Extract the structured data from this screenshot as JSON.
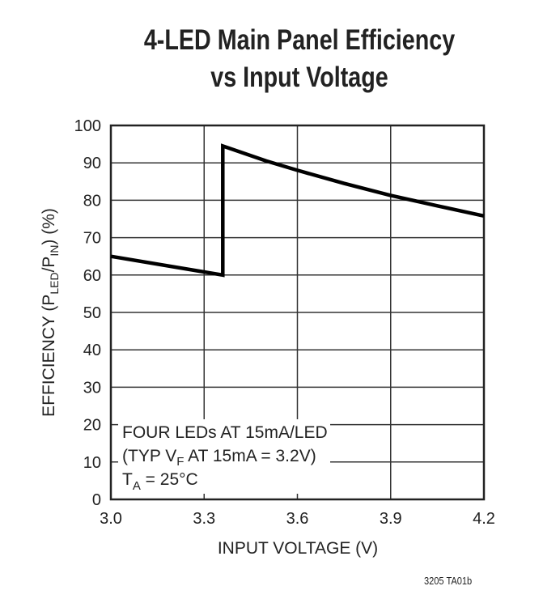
{
  "chart_data": {
    "type": "line",
    "title": "4-LED Main Panel Efficiency",
    "subtitle": "vs Input Voltage",
    "xlabel": "INPUT VOLTAGE (V)",
    "ylabel": "EFFICIENCY (PLED/PIN) (%)",
    "xlim": [
      3.0,
      4.2
    ],
    "ylim": [
      0,
      100
    ],
    "x_ticks": [
      "3.0",
      "3.3",
      "3.6",
      "3.9",
      "4.2"
    ],
    "y_ticks": [
      "0",
      "10",
      "20",
      "30",
      "40",
      "50",
      "60",
      "70",
      "80",
      "90",
      "100"
    ],
    "grid": true,
    "series": [
      {
        "name": "Efficiency",
        "x": [
          3.0,
          3.36,
          3.36,
          3.5,
          3.6,
          3.75,
          3.9,
          4.05,
          4.2
        ],
        "values": [
          65,
          60,
          94.5,
          90.5,
          88,
          84.5,
          81.3,
          78.5,
          75.8
        ]
      }
    ],
    "annotations": [
      "FOUR LEDs AT 15mA/LED",
      "(TYP VF AT 15mA = 3.2V)",
      "TA = 25°C"
    ],
    "figure_code": "3205 TA01b"
  },
  "title_line1": "4-LED Main Panel Efficiency",
  "title_line2": "vs Input Voltage",
  "xlabel": "INPUT VOLTAGE (V)",
  "ylabel_main": "EFFICIENCY (P",
  "ylabel_sub1": "LED",
  "ylabel_mid": "/P",
  "ylabel_sub2": "IN",
  "ylabel_end": ") (%)",
  "note": {
    "line1": "FOUR LEDs AT 15mA/LED",
    "line2_a": "(TYP V",
    "line2_sub": "F",
    "line2_b": " AT 15mA = 3.2V)",
    "line3_a": "T",
    "line3_sub": "A",
    "line3_b": " = 25°C"
  },
  "figure_code": "3205 TA01b"
}
